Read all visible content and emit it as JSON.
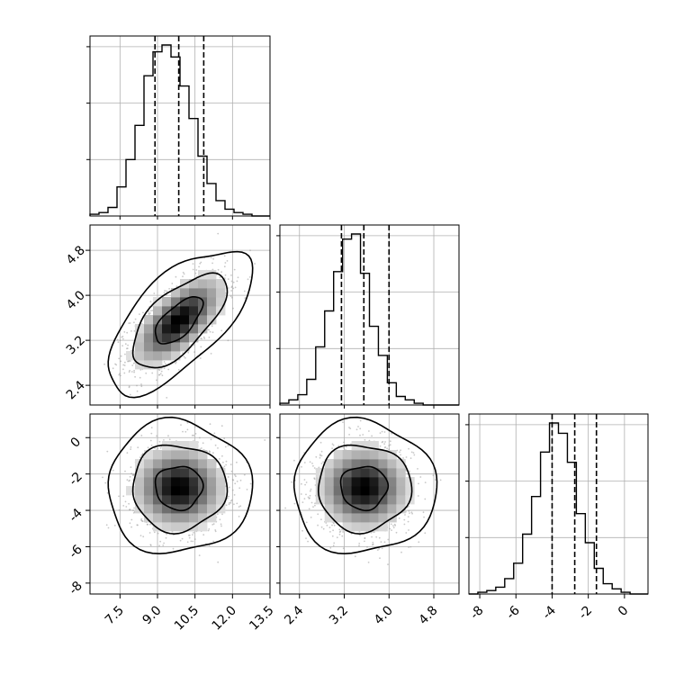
{
  "chart_data": {
    "type": "corner",
    "grid": true,
    "parameters": [
      {
        "range": [
          6.3,
          13.5
        ],
        "ticks": [
          "7.5",
          "9.0",
          "10.5",
          "12.0",
          "13.5"
        ],
        "tick_values": [
          7.5,
          9.0,
          10.5,
          12.0,
          13.5
        ]
      },
      {
        "range": [
          2.05,
          5.25
        ],
        "ticks": [
          "2.4",
          "3.2",
          "4.0",
          "4.8"
        ],
        "tick_values": [
          2.4,
          3.2,
          4.0,
          4.8
        ]
      },
      {
        "range": [
          -8.6,
          1.3
        ],
        "ticks": [
          "-8",
          "-6",
          "-4",
          "-2",
          "0"
        ],
        "tick_values": [
          -8,
          -6,
          -4,
          -2,
          0
        ]
      }
    ],
    "histograms": [
      {
        "param": 0,
        "bin_start": 6.3,
        "bin_width": 0.36,
        "counts": [
          0.01,
          0.02,
          0.05,
          0.17,
          0.33,
          0.53,
          0.82,
          0.96,
          1.0,
          0.93,
          0.76,
          0.57,
          0.35,
          0.19,
          0.09,
          0.04,
          0.02,
          0.01,
          0.0,
          0.0
        ],
        "quantiles": [
          8.9,
          9.85,
          10.85
        ]
      },
      {
        "param": 1,
        "bin_start": 2.05,
        "bin_width": 0.16,
        "counts": [
          0.01,
          0.03,
          0.06,
          0.15,
          0.34,
          0.55,
          0.78,
          0.97,
          1.0,
          0.77,
          0.46,
          0.29,
          0.13,
          0.05,
          0.03,
          0.01,
          0.0,
          0.0,
          0.0,
          0.0
        ],
        "quantiles": [
          3.15,
          3.55,
          4.0
        ]
      },
      {
        "param": 2,
        "bin_start": -8.6,
        "bin_width": 0.495,
        "counts": [
          0.0,
          0.01,
          0.02,
          0.04,
          0.09,
          0.18,
          0.35,
          0.57,
          0.83,
          1.0,
          0.94,
          0.77,
          0.47,
          0.3,
          0.15,
          0.06,
          0.03,
          0.01,
          0.0,
          0.0
        ],
        "quantiles": [
          -4.0,
          -2.75,
          -1.55
        ]
      }
    ],
    "scatter_2d": [
      {
        "x_param": 0,
        "y_param": 1,
        "mean": [
          9.85,
          3.55
        ],
        "sd": [
          0.95,
          0.42
        ],
        "rho": 0.65
      },
      {
        "x_param": 0,
        "y_param": 2,
        "mean": [
          9.85,
          -2.75
        ],
        "sd": [
          0.95,
          1.2
        ],
        "rho": 0.0
      },
      {
        "x_param": 1,
        "y_param": 2,
        "mean": [
          3.55,
          -2.75
        ],
        "sd": [
          0.42,
          1.2
        ],
        "rho": 0.0
      }
    ],
    "contour_levels": [
      0.39,
      0.86,
      0.99
    ]
  }
}
